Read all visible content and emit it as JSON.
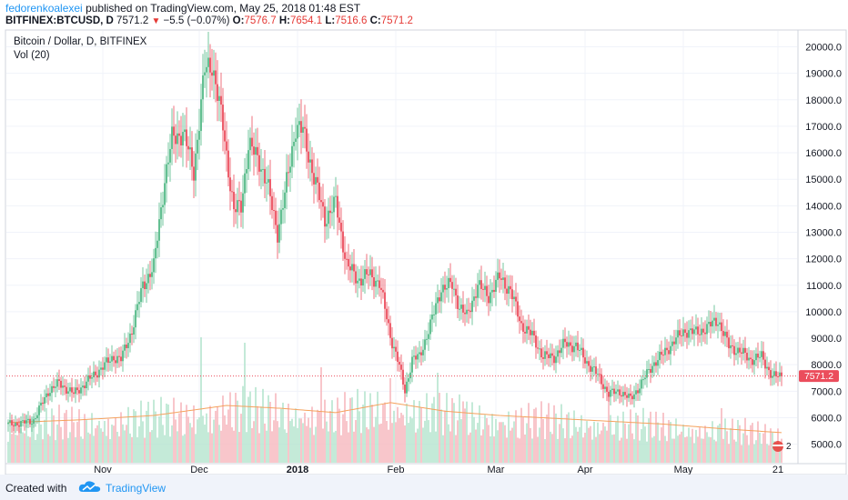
{
  "header": {
    "author": "fedorenkoalexei",
    "published_text": "published on TradingView.com, May 25, 2018 01:48 EST",
    "symbol": "BITFINEX:BTCUSD, D",
    "last": "7571.2",
    "arrow": "▼",
    "change": "−5.5 (−0.07%)",
    "o_label": "O:",
    "o_value": "7576.7",
    "h_label": "H:",
    "h_value": "7654.1",
    "l_label": "L:",
    "l_value": "7516.6",
    "c_label": "C:",
    "c_value": "7571.2"
  },
  "legend": {
    "title": "Bitcoin / Dollar, D, BITFINEX",
    "volume_label": "Vol (20)"
  },
  "footer": {
    "created_with": "Created with",
    "brand": "TradingView",
    "logo_icon": "tradingview-cloud-icon"
  },
  "colors": {
    "up": "#53b987",
    "down": "#eb4d5c",
    "vol_up": "#b5e4cf",
    "vol_down": "#f7b8be",
    "vol_ma": "#f5a25d",
    "price_line": "#eb4d5c"
  },
  "chart_data": {
    "type": "candlestick",
    "title": "Bitcoin / Dollar, D, BITFINEX",
    "ylim": [
      4300,
      20600
    ],
    "y_ticks": [
      "20000.0",
      "19000.0",
      "18000.0",
      "17000.0",
      "16000.0",
      "15000.0",
      "14000.0",
      "13000.0",
      "12000.0",
      "11000.0",
      "10000.0",
      "9000.0",
      "8000.0",
      "7000.0",
      "6000.0",
      "5000.0"
    ],
    "x_ticks": [
      "Nov",
      "Dec",
      "2018",
      "Feb",
      "Mar",
      "Apr",
      "May",
      "21"
    ],
    "x_tick_bold": [
      false,
      false,
      true,
      false,
      false,
      false,
      false,
      false
    ],
    "last_price": 7571.2,
    "last_price_label": "7571.2",
    "scale_icon_label": "2",
    "close_anchors": [
      [
        0,
        5750
      ],
      [
        8,
        5800
      ],
      [
        14,
        5900
      ],
      [
        22,
        7000
      ],
      [
        28,
        7300
      ],
      [
        36,
        6900
      ],
      [
        44,
        7400
      ],
      [
        50,
        7800
      ],
      [
        58,
        8300
      ],
      [
        62,
        8200
      ],
      [
        68,
        9300
      ],
      [
        74,
        11000
      ],
      [
        80,
        11700
      ],
      [
        86,
        15000
      ],
      [
        90,
        16500
      ],
      [
        96,
        16800
      ],
      [
        102,
        15300
      ],
      [
        108,
        19100
      ],
      [
        112,
        19400
      ],
      [
        118,
        17000
      ],
      [
        124,
        13800
      ],
      [
        128,
        14000
      ],
      [
        132,
        16300
      ],
      [
        138,
        15700
      ],
      [
        142,
        14900
      ],
      [
        148,
        13000
      ],
      [
        152,
        14400
      ],
      [
        158,
        17000
      ],
      [
        162,
        16800
      ],
      [
        168,
        15100
      ],
      [
        174,
        13500
      ],
      [
        180,
        14100
      ],
      [
        186,
        11800
      ],
      [
        192,
        11200
      ],
      [
        198,
        11400
      ],
      [
        204,
        11100
      ],
      [
        210,
        9100
      ],
      [
        214,
        8200
      ],
      [
        218,
        7000
      ],
      [
        222,
        8200
      ],
      [
        226,
        8300
      ],
      [
        232,
        9500
      ],
      [
        238,
        10900
      ],
      [
        244,
        11000
      ],
      [
        248,
        10200
      ],
      [
        252,
        9800
      ],
      [
        258,
        11000
      ],
      [
        264,
        10600
      ],
      [
        270,
        11300
      ],
      [
        276,
        10800
      ],
      [
        282,
        9500
      ],
      [
        288,
        9100
      ],
      [
        294,
        8300
      ],
      [
        300,
        8300
      ],
      [
        306,
        8800
      ],
      [
        312,
        8700
      ],
      [
        318,
        8100
      ],
      [
        324,
        7600
      ],
      [
        330,
        6900
      ],
      [
        336,
        7000
      ],
      [
        342,
        6700
      ],
      [
        348,
        7300
      ],
      [
        354,
        8000
      ],
      [
        360,
        8400
      ],
      [
        366,
        8900
      ],
      [
        372,
        9300
      ],
      [
        378,
        9200
      ],
      [
        384,
        9400
      ],
      [
        390,
        9700
      ],
      [
        396,
        8700
      ],
      [
        402,
        8500
      ],
      [
        408,
        8200
      ],
      [
        414,
        8300
      ],
      [
        420,
        7550
      ],
      [
        425,
        7571
      ]
    ],
    "volume_ylim": [
      0,
      1
    ],
    "volume_ma_profile": [
      [
        0,
        0.28
      ],
      [
        40,
        0.3
      ],
      [
        80,
        0.33
      ],
      [
        120,
        0.4
      ],
      [
        150,
        0.38
      ],
      [
        180,
        0.35
      ],
      [
        210,
        0.42
      ],
      [
        240,
        0.36
      ],
      [
        270,
        0.33
      ],
      [
        300,
        0.31
      ],
      [
        330,
        0.29
      ],
      [
        360,
        0.27
      ],
      [
        390,
        0.24
      ],
      [
        425,
        0.21
      ]
    ],
    "volume_spikes": [
      [
        106,
        0.92
      ],
      [
        130,
        0.88
      ],
      [
        172,
        0.7
      ],
      [
        210,
        0.62
      ],
      [
        236,
        0.66
      ],
      [
        250,
        0.45
      ],
      [
        330,
        0.5
      ],
      [
        392,
        0.4
      ]
    ]
  }
}
